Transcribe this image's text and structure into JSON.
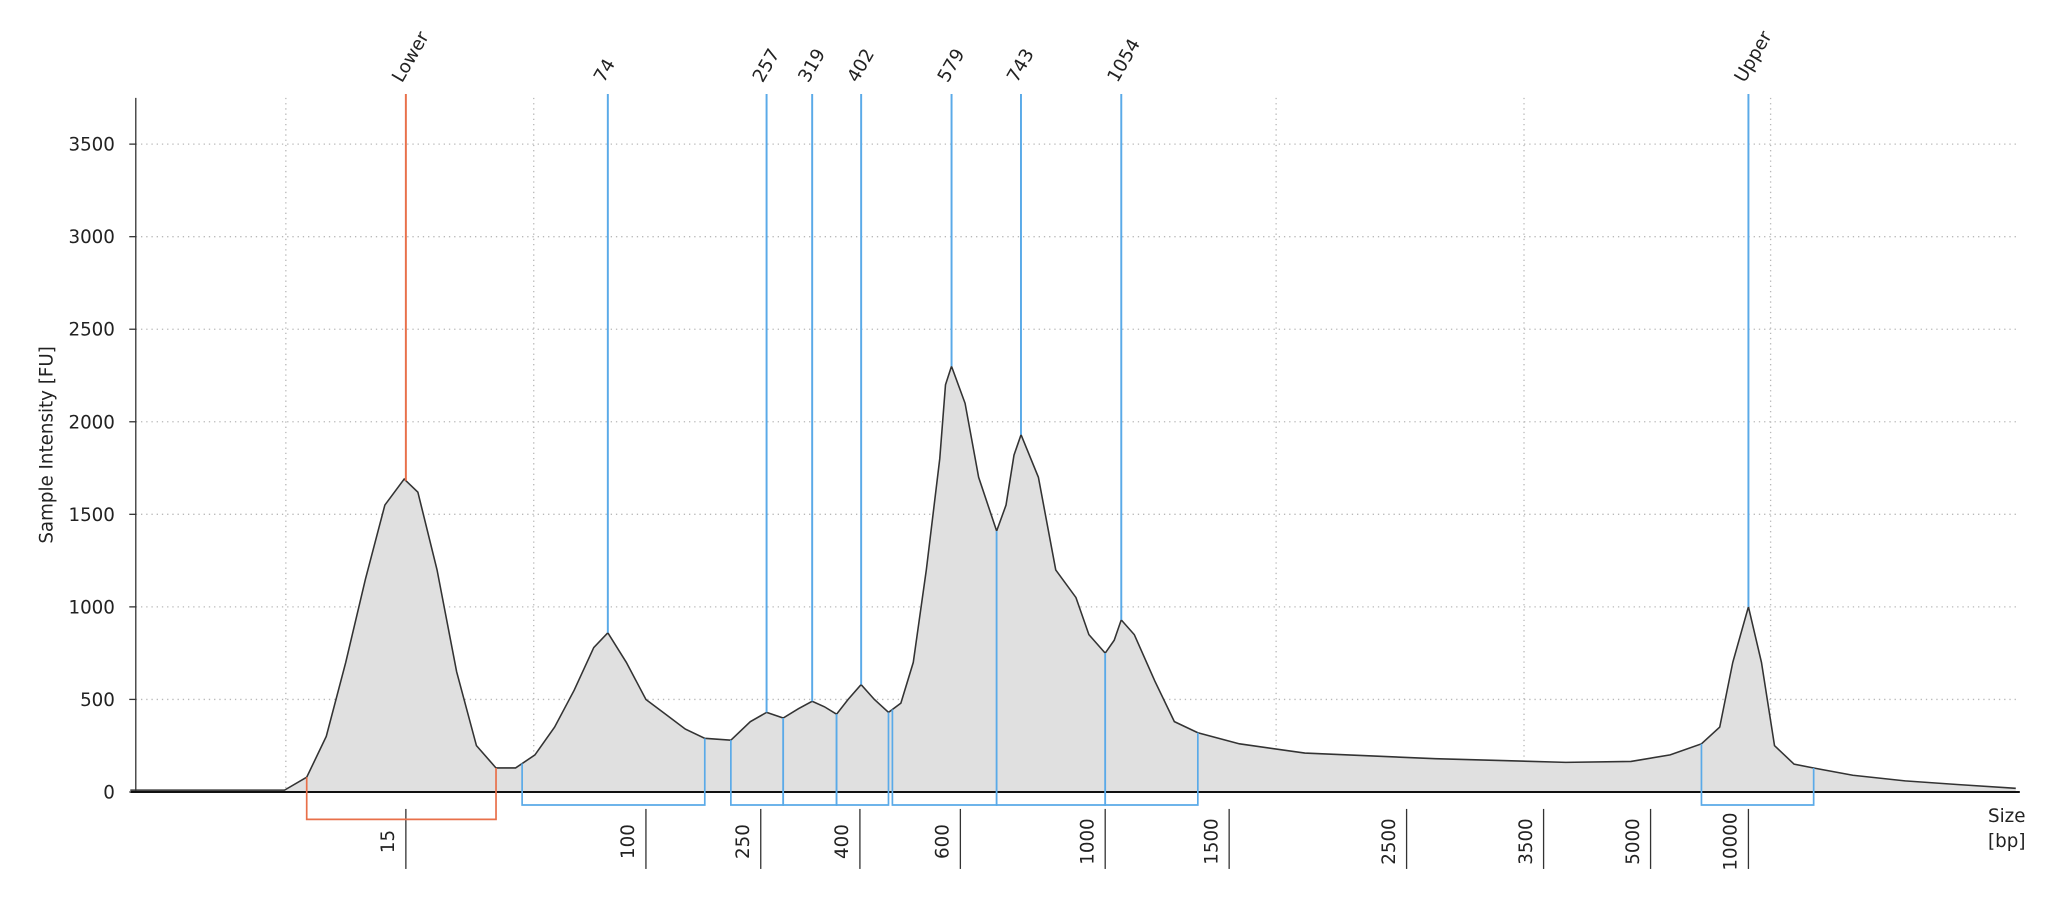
{
  "chart_data": {
    "type": "area",
    "ylabel": "Sample Intensity [FU]",
    "xlabel": [
      "Size",
      "[bp]"
    ],
    "x": [
      1.7,
      5.75,
      6.85,
      8.0,
      9.33,
      10.9,
      12.7,
      14.8,
      16.5,
      19.2,
      22.4,
      26.2,
      30.6,
      35.7,
      41.6,
      48.6,
      56.7,
      66.2,
      74,
      85.7,
      100,
      117,
      137,
      160,
      197,
      230,
      257,
      278,
      299,
      319,
      338,
      358,
      378,
      402,
      424,
      449,
      472,
      496,
      523,
      552,
      565,
      579,
      610,
      640,
      682,
      705,
      725,
      743,
      790,
      840,
      902,
      944,
      1000,
      1030,
      1054,
      1100,
      1176,
      1254,
      1354,
      1545,
      1865,
      2683,
      3769,
      4685,
      5744,
      7171,
      8160,
      8950,
      10000,
      10970,
      12030,
      13820,
      15870,
      20940,
      30310,
      43850,
      66460
    ],
    "values": [
      10,
      10,
      80,
      300,
      700,
      1150,
      1550,
      1690,
      1620,
      1200,
      650,
      250,
      130,
      130,
      200,
      350,
      550,
      780,
      860,
      700,
      500,
      420,
      340,
      290,
      280,
      380,
      430,
      400,
      450,
      490,
      460,
      420,
      500,
      580,
      500,
      430,
      480,
      700,
      1200,
      1800,
      2200,
      2300,
      2100,
      1700,
      1410,
      1550,
      1820,
      1930,
      1700,
      1200,
      1050,
      850,
      750,
      820,
      930,
      850,
      600,
      380,
      320,
      260,
      210,
      180,
      160,
      165,
      200,
      260,
      350,
      700,
      1000,
      700,
      250,
      150,
      130,
      90,
      60,
      40,
      20
    ],
    "color": "#e0e0e0",
    "line_color": "#333333",
    "ylim": [
      0,
      3750
    ],
    "yticks": [
      0,
      500,
      1000,
      1500,
      2000,
      2500,
      3000,
      3500
    ],
    "xticks": [
      15,
      100,
      250,
      400,
      600,
      1000,
      1500,
      2500,
      3500,
      5000,
      10000
    ],
    "grid": true,
    "markers": [
      {
        "label": "Lower",
        "x": 15,
        "color": "#e8704a"
      },
      {
        "label": "Upper",
        "x": 10000,
        "color": "#5aaae8"
      }
    ],
    "peaks": [
      74,
      257,
      319,
      402,
      579,
      743,
      1054
    ],
    "peak_color": "#5aaae8",
    "regions": [
      {
        "start": 6.85,
        "end": 30.6,
        "color": "#e8704a"
      },
      {
        "start": 37.6,
        "end": 160,
        "color": "#5aaae8"
      },
      {
        "start": 197,
        "end": 278,
        "color": "#5aaae8"
      },
      {
        "start": 278,
        "end": 358,
        "color": "#5aaae8"
      },
      {
        "start": 358,
        "end": 449,
        "color": "#5aaae8"
      },
      {
        "start": 456,
        "end": 682,
        "color": "#5aaae8"
      },
      {
        "start": 682,
        "end": 1000,
        "color": "#5aaae8"
      },
      {
        "start": 1000,
        "end": 1354,
        "color": "#5aaae8"
      },
      {
        "start": 7171,
        "end": 15870,
        "color": "#5aaae8"
      }
    ]
  }
}
